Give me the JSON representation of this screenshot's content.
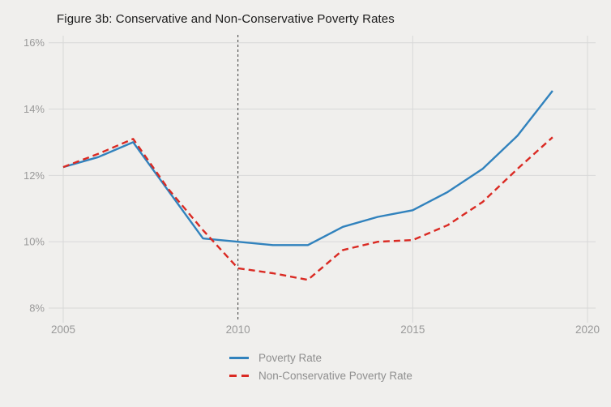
{
  "page": {
    "background": "#f0efed"
  },
  "colors": {
    "title_color": "#1a1a1a",
    "grid_color": "#d8d8d8",
    "axis_label_color": "#999999",
    "legend_text_color": "#8f8f8f",
    "annotation_color": "#3c3c3c",
    "series_blue": "#3182bd",
    "series_red": "#da2a23"
  },
  "chart_data": {
    "type": "line",
    "title": "Figure 3b: Conservative and Non-Conservative Poverty Rates",
    "xlabel": "",
    "ylabel": "",
    "x": [
      2005,
      2006,
      2007,
      2008,
      2009,
      2010,
      2011,
      2012,
      2013,
      2014,
      2015,
      2016,
      2017,
      2018,
      2019
    ],
    "series": [
      {
        "name": "Poverty Rate",
        "color": "#3182bd",
        "style": "solid",
        "values": [
          12.25,
          12.55,
          13.0,
          11.55,
          10.1,
          10.0,
          9.9,
          9.9,
          10.45,
          10.75,
          10.95,
          11.5,
          12.2,
          13.2,
          14.55
        ]
      },
      {
        "name": "Non-Conservative Poverty Rate",
        "color": "#da2a23",
        "style": "dashed",
        "values": [
          12.25,
          12.65,
          13.1,
          11.6,
          10.35,
          9.2,
          9.05,
          8.85,
          9.75,
          10.0,
          10.05,
          10.5,
          11.2,
          12.2,
          13.15
        ]
      }
    ],
    "xlim": [
      2005,
      2020
    ],
    "ylim": [
      8,
      16
    ],
    "x_ticks": [
      2005,
      2010,
      2015,
      2020
    ],
    "y_ticks": [
      {
        "value": 8,
        "label": "8%"
      },
      {
        "value": 10,
        "label": "10%"
      },
      {
        "value": 12,
        "label": "12%"
      },
      {
        "value": 14,
        "label": "14%"
      },
      {
        "value": 16,
        "label": "16%"
      }
    ],
    "grid": true,
    "legend_position": "bottom-left",
    "annotations": [
      {
        "type": "vline",
        "x": 2010,
        "style": "dashed"
      }
    ]
  }
}
